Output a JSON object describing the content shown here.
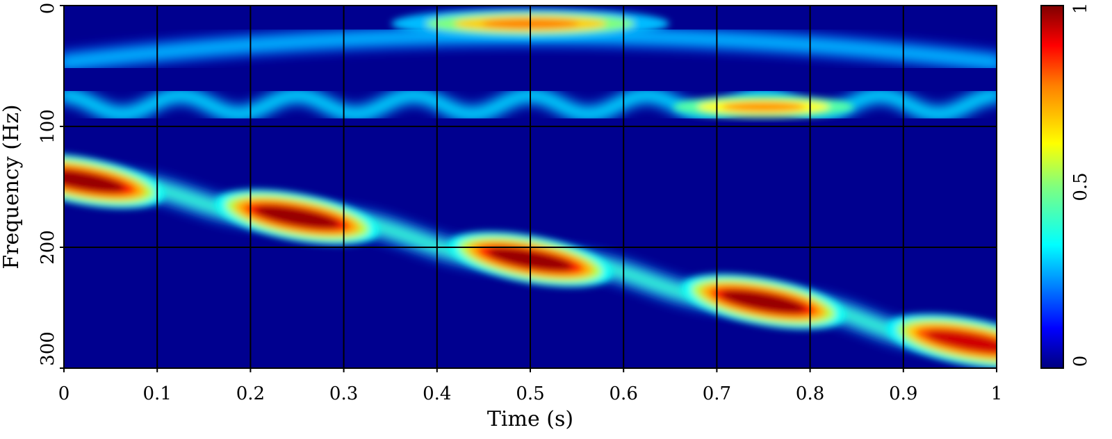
{
  "chart_data": {
    "type": "heatmap",
    "title": "",
    "xlabel": "Time (s)",
    "ylabel": "Frequency (Hz)",
    "xlim": [
      0,
      1
    ],
    "ylim": [
      0,
      300
    ],
    "y_axis_inverted": true,
    "x_ticks": [
      "0",
      "0.1",
      "0.2",
      "0.3",
      "0.4",
      "0.5",
      "0.6",
      "0.7",
      "0.8",
      "0.9",
      "1"
    ],
    "x_tick_values": [
      0,
      0.1,
      0.2,
      0.3,
      0.4,
      0.5,
      0.6,
      0.7,
      0.8,
      0.9,
      1
    ],
    "y_ticks": [
      "0",
      "100",
      "200",
      "300"
    ],
    "y_tick_values": [
      0,
      100,
      200,
      300
    ],
    "grid": true,
    "grid_color": "#000000",
    "colormap": "jet",
    "colorbar": {
      "range": [
        0,
        1
      ],
      "ticks": [
        "0",
        "0.5",
        "1"
      ],
      "tick_values": [
        0,
        0.5,
        1
      ],
      "placement": "right"
    },
    "components": [
      {
        "name": "upper chirp band",
        "description": "broad arc",
        "points": [
          {
            "t": 0.0,
            "f": 47,
            "amp": 0.18
          },
          {
            "t": 0.25,
            "f": 35,
            "amp": 0.25
          },
          {
            "t": 0.5,
            "f": 25,
            "amp": 0.45
          },
          {
            "t": 0.75,
            "f": 35,
            "amp": 0.25
          },
          {
            "t": 1.0,
            "f": 47,
            "amp": 0.18
          }
        ]
      },
      {
        "name": "top hotspot",
        "points": [
          {
            "t": 0.5,
            "f": 15,
            "amp": 0.75
          }
        ]
      },
      {
        "name": "oscillating band",
        "center_f": 82,
        "swing_f": 8,
        "period_s": 0.125,
        "peak": {
          "t": 0.75,
          "f": 85,
          "amp": 0.75
        }
      },
      {
        "name": "ridge blobs",
        "points": [
          {
            "t": 0.02,
            "f": 145,
            "amp": 1.0
          },
          {
            "t": 0.25,
            "f": 175,
            "amp": 1.0
          },
          {
            "t": 0.5,
            "f": 210,
            "amp": 1.0
          },
          {
            "t": 0.75,
            "f": 245,
            "amp": 1.0
          },
          {
            "t": 0.97,
            "f": 278,
            "amp": 0.95
          }
        ]
      }
    ]
  }
}
